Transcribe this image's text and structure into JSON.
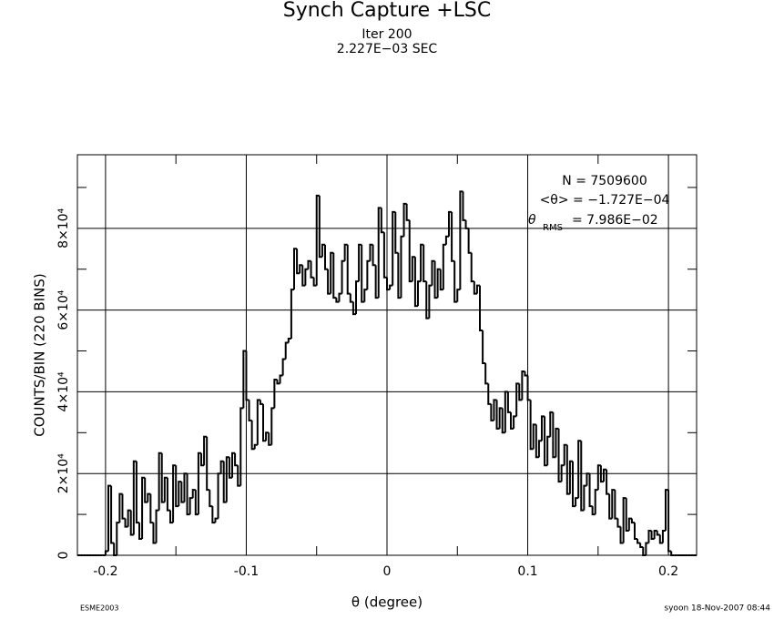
{
  "chart_data": {
    "type": "histogram",
    "title": "Synch Capture +LSC",
    "subtitle": [
      "Iter 200",
      "2.227E−03 SEC"
    ],
    "x_label": "θ (degree)",
    "y_label": "COUNTS/BIN (220 BINS)",
    "stats": {
      "n": "N = 7509600",
      "mean": "<θ> = −1.727E−04",
      "rms": {
        "symbol": "θ",
        "subscript": "RMS",
        "text": "=  7.986E−02"
      }
    },
    "footer_left": "ESME2003",
    "footer_right": "syoon 18-Nov-2007 08:44",
    "color": "#000000",
    "grid": true,
    "xlim": [
      -0.22,
      0.22
    ],
    "ylim": [
      0,
      98000
    ],
    "xticks": [
      -0.2,
      -0.1,
      0,
      0.1,
      0.2
    ],
    "xminorticks": [
      -0.15,
      -0.05,
      0.05,
      0.15
    ],
    "yticks": [
      0,
      {
        "value": 20000,
        "label": "2×10⁴"
      },
      {
        "value": 40000,
        "label": "4×10⁴"
      },
      {
        "value": 60000,
        "label": "6×10⁴"
      },
      {
        "value": 80000,
        "label": "8×10⁴"
      }
    ],
    "yminorticks": [
      10000,
      30000,
      50000,
      70000,
      90000
    ],
    "bins": [
      -0.22,
      -0.218,
      -0.216,
      -0.214,
      -0.212,
      -0.21,
      -0.208,
      -0.206,
      -0.204,
      -0.202,
      -0.2,
      -0.198,
      -0.196,
      -0.194,
      -0.192,
      -0.19,
      -0.188,
      -0.186,
      -0.184,
      -0.182,
      -0.18,
      -0.178,
      -0.176,
      -0.174,
      -0.172,
      -0.17,
      -0.168,
      -0.166,
      -0.164,
      -0.162,
      -0.16,
      -0.158,
      -0.156,
      -0.154,
      -0.152,
      -0.15,
      -0.148,
      -0.146,
      -0.144,
      -0.142,
      -0.14,
      -0.138,
      -0.136,
      -0.134,
      -0.132,
      -0.13,
      -0.128,
      -0.126,
      -0.124,
      -0.122,
      -0.12,
      -0.118,
      -0.116,
      -0.114,
      -0.112,
      -0.11,
      -0.108,
      -0.106,
      -0.104,
      -0.102,
      -0.1,
      -0.098,
      -0.096,
      -0.094,
      -0.092,
      -0.09,
      -0.088,
      -0.086,
      -0.084,
      -0.082,
      -0.08,
      -0.078,
      -0.076,
      -0.074,
      -0.072,
      -0.07,
      -0.068,
      -0.066,
      -0.064,
      -0.062,
      -0.06,
      -0.058,
      -0.056,
      -0.054,
      -0.052,
      -0.05,
      -0.048,
      -0.046,
      -0.044,
      -0.042,
      -0.04,
      -0.038,
      -0.036,
      -0.034,
      -0.032,
      -0.03,
      -0.028,
      -0.026,
      -0.024,
      -0.022,
      -0.02,
      -0.018,
      -0.016,
      -0.014,
      -0.012,
      -0.01,
      -0.008,
      -0.006,
      -0.004,
      -0.002,
      0,
      0.002,
      0.004,
      0.006,
      0.008,
      0.01,
      0.012,
      0.014,
      0.016,
      0.018,
      0.02,
      0.022,
      0.024,
      0.026,
      0.028,
      0.03,
      0.032,
      0.034,
      0.036,
      0.038,
      0.04,
      0.042,
      0.044,
      0.046,
      0.048,
      0.05,
      0.052,
      0.054,
      0.056,
      0.058,
      0.06,
      0.062,
      0.064,
      0.066,
      0.068,
      0.07,
      0.072,
      0.074,
      0.076,
      0.078,
      0.08,
      0.082,
      0.084,
      0.086,
      0.088,
      0.09,
      0.092,
      0.094,
      0.096,
      0.098,
      0.1,
      0.102,
      0.104,
      0.106,
      0.108,
      0.11,
      0.112,
      0.114,
      0.116,
      0.118,
      0.12,
      0.122,
      0.124,
      0.126,
      0.128,
      0.13,
      0.132,
      0.134,
      0.136,
      0.138,
      0.14,
      0.142,
      0.144,
      0.146,
      0.148,
      0.15,
      0.152,
      0.154,
      0.156,
      0.158,
      0.16,
      0.162,
      0.164,
      0.166,
      0.168,
      0.17,
      0.172,
      0.174,
      0.176,
      0.178,
      0.18,
      0.182,
      0.184,
      0.186,
      0.188,
      0.19,
      0.192,
      0.194,
      0.196,
      0.198,
      0.2,
      0.202,
      0.204,
      0.206,
      0.208,
      0.21,
      0.212,
      0.214,
      0.216,
      0.218,
      0.22
    ],
    "values": [
      0,
      0,
      0,
      0,
      0,
      0,
      0,
      0,
      0,
      0,
      1000,
      17000,
      3000,
      0,
      8000,
      15000,
      9000,
      7000,
      11000,
      5000,
      23000,
      8000,
      4000,
      19000,
      13000,
      15000,
      8000,
      3000,
      11000,
      25000,
      13000,
      19000,
      11000,
      8000,
      22000,
      12000,
      18000,
      13000,
      20000,
      10000,
      14000,
      16000,
      10000,
      25000,
      22000,
      29000,
      16000,
      12000,
      8000,
      9000,
      20000,
      23000,
      13000,
      24000,
      19000,
      25000,
      22000,
      17000,
      36000,
      50000,
      38000,
      33000,
      26000,
      27000,
      38000,
      37000,
      28000,
      30000,
      27000,
      36000,
      43000,
      42000,
      44000,
      48000,
      52000,
      53000,
      65000,
      75000,
      69000,
      71000,
      66000,
      70000,
      72000,
      68000,
      66000,
      88000,
      73000,
      76000,
      70000,
      64000,
      74000,
      63000,
      62000,
      64000,
      72000,
      76000,
      64000,
      62000,
      59000,
      67000,
      76000,
      62000,
      65000,
      72000,
      76000,
      71000,
      63000,
      85000,
      79000,
      68000,
      65000,
      66000,
      84000,
      74000,
      63000,
      78000,
      86000,
      82000,
      67000,
      73000,
      61000,
      67000,
      76000,
      67000,
      58000,
      66000,
      72000,
      63000,
      70000,
      65000,
      76000,
      78000,
      84000,
      72000,
      62000,
      65000,
      89000,
      82000,
      80000,
      74000,
      67000,
      64000,
      66000,
      55000,
      47000,
      42000,
      37000,
      33000,
      38000,
      31000,
      36000,
      30000,
      40000,
      35000,
      31000,
      34000,
      42000,
      38000,
      45000,
      44000,
      38000,
      26000,
      32000,
      24000,
      28000,
      34000,
      22000,
      29000,
      35000,
      24000,
      31000,
      18000,
      22000,
      27000,
      15000,
      23000,
      12000,
      14000,
      28000,
      11000,
      17000,
      20000,
      12000,
      10000,
      16000,
      22000,
      18000,
      21000,
      15000,
      9000,
      16000,
      9000,
      7000,
      3000,
      14000,
      6000,
      9000,
      8000,
      4000,
      3000,
      2000,
      0,
      3000,
      6000,
      4000,
      6000,
      5000,
      3000,
      6000,
      16000,
      1000,
      0,
      0,
      0,
      0,
      0,
      0,
      0,
      0,
      0
    ]
  }
}
